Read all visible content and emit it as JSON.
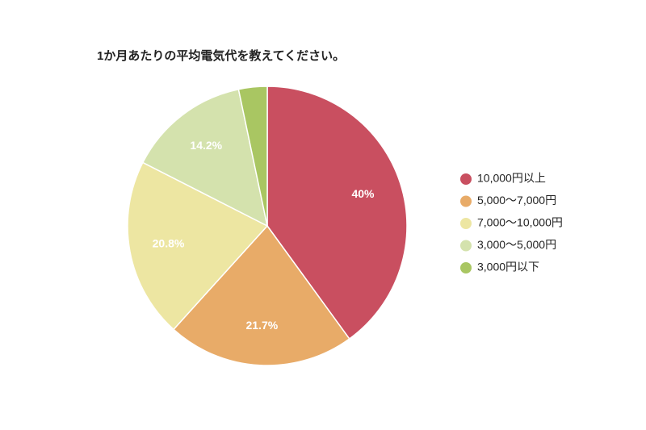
{
  "chart_data": {
    "type": "pie",
    "title": "1か月あたりの平均電気代を教えてください。",
    "categories": [
      "10,000円以上",
      "5,000〜7,000円",
      "7,000〜10,000円",
      "3,000〜5,000円",
      "3,000円以下"
    ],
    "values": [
      40,
      21.7,
      20.8,
      14.2,
      3.3
    ],
    "value_labels": [
      "40%",
      "21.7%",
      "20.8%",
      "14.2%",
      null
    ],
    "colors": [
      "#c94f60",
      "#e8ab68",
      "#ede6a2",
      "#d4e2ad",
      "#a9c662"
    ],
    "legend": "right"
  }
}
